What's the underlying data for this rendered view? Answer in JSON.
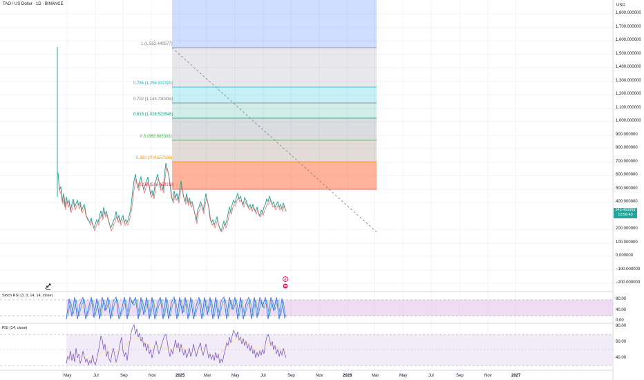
{
  "header": {
    "title": "TAO / US Dollar · 1D · BINANCE",
    "currency": "USD"
  },
  "price_axis": {
    "labels": [
      "1,800.000000",
      "1,700.000000",
      "1,600.000000",
      "1,500.000000",
      "1,400.000000",
      "1,300.000000",
      "1,200.000000",
      "1,100.000000",
      "1,000.000000",
      "900.000000",
      "800.000000",
      "700.000000",
      "600.000000",
      "500.000000",
      "400.000000",
      "200.000000",
      "100.000000",
      "0.000000",
      "−100.000000",
      "−200.000000"
    ],
    "last_price": "343.460069",
    "countdown": "10:56:43",
    "last_price_color": "#26a69a"
  },
  "fib_levels": [
    {
      "label": "1 (1,552.440577)",
      "color": "#787b86"
    },
    {
      "label": "0.786 (1,256.937320)",
      "color": "#00bcd4"
    },
    {
      "label": "0.702 (1,143.730434)",
      "color": "#787b86"
    },
    {
      "label": "0.618 (1,028.523548)",
      "color": "#089981"
    },
    {
      "label": "0.5 (869.885303)",
      "color": "#4caf50"
    },
    {
      "label": "0.382 (704.657096)",
      "color": "#ff9800"
    },
    {
      "label": "0.236 (514.453318)",
      "color": "#f23645"
    }
  ],
  "time_axis": {
    "labels": [
      "May",
      "Jul",
      "Sep",
      "Nov",
      "2025",
      "Mar",
      "May",
      "Jul",
      "Sep",
      "Nov",
      "2026",
      "Mar",
      "May",
      "Jul",
      "Sep",
      "Nov",
      "2027"
    ]
  },
  "stoch_rsi": {
    "title": "Stoch RSI (3, 3, 14, 14, close)",
    "axis": [
      "80.00",
      "40.00",
      "0.00"
    ],
    "k_color": "#2962ff",
    "d_color": "#ff6d00",
    "band_color": "#e1bee7"
  },
  "rsi": {
    "title": "RSI (14, close)",
    "axis": [
      "80.00",
      "60.00",
      "40.00"
    ],
    "line_color": "#7e57c2",
    "band_color": "#ede7f6"
  },
  "icons": {
    "logo": "tradingview-logo-icon",
    "event_a": "flash-event-icon",
    "event_b": "earnings-event-icon"
  }
}
